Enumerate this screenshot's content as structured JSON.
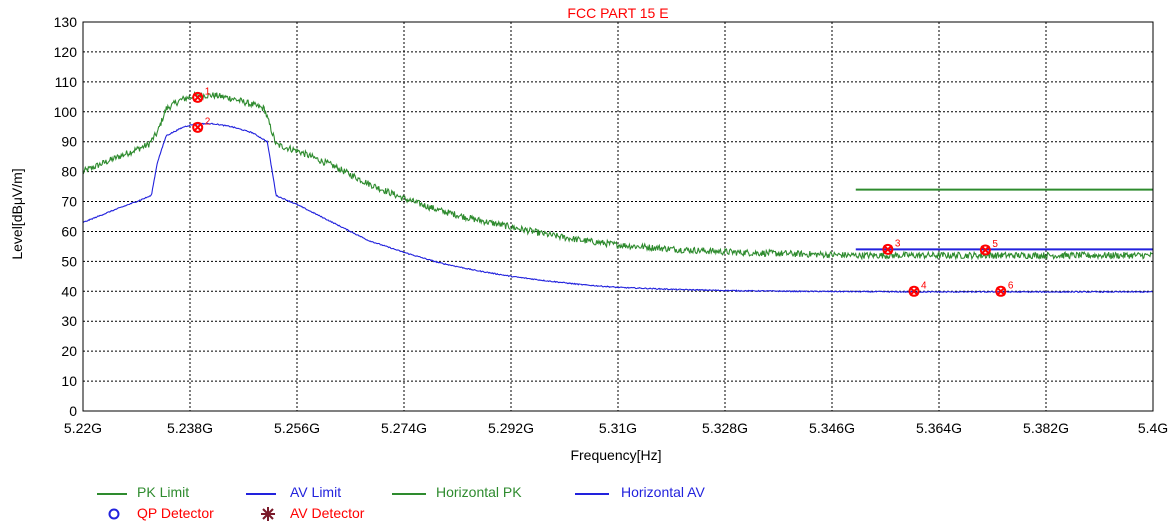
{
  "chart_data": {
    "type": "line",
    "title": "FCC PART 15 E",
    "xlabel": "Frequency[Hz]",
    "ylabel": "Level[dBμV/m]",
    "x_range_ghz": [
      5.22,
      5.4
    ],
    "ylim": [
      0,
      130
    ],
    "x_ticks": [
      {
        "v": 5.22,
        "label": "5.22G"
      },
      {
        "v": 5.238,
        "label": "5.238G"
      },
      {
        "v": 5.256,
        "label": "5.256G"
      },
      {
        "v": 5.274,
        "label": "5.274G"
      },
      {
        "v": 5.292,
        "label": "5.292G"
      },
      {
        "v": 5.31,
        "label": "5.31G"
      },
      {
        "v": 5.328,
        "label": "5.328G"
      },
      {
        "v": 5.346,
        "label": "5.346G"
      },
      {
        "v": 5.364,
        "label": "5.364G"
      },
      {
        "v": 5.382,
        "label": "5.382G"
      },
      {
        "v": 5.4,
        "label": "5.4G"
      }
    ],
    "y_ticks": [
      0,
      10,
      20,
      30,
      40,
      50,
      60,
      70,
      80,
      90,
      100,
      110,
      120,
      130
    ],
    "grid": true,
    "series": [
      {
        "name": "PK Limit",
        "color": "#2e8b2e",
        "x": [
          5.35,
          5.4
        ],
        "y": [
          74,
          74
        ]
      },
      {
        "name": "AV Limit",
        "color": "#2222dd",
        "x": [
          5.35,
          5.4
        ],
        "y": [
          54,
          54
        ]
      },
      {
        "name": "Horizontal PK",
        "color": "#2e8b2e",
        "noisy": true,
        "x": [
          5.22,
          5.226,
          5.231,
          5.2325,
          5.234,
          5.2365,
          5.239,
          5.242,
          5.245,
          5.2475,
          5.2505,
          5.2525,
          5.256,
          5.262,
          5.268,
          5.274,
          5.28,
          5.286,
          5.292,
          5.298,
          5.304,
          5.31,
          5.32,
          5.33,
          5.34,
          5.35,
          5.36,
          5.37,
          5.38,
          5.39,
          5.4
        ],
        "y": [
          80,
          85,
          89,
          93,
          101,
          104,
          105.5,
          105.5,
          104.5,
          103,
          101,
          89,
          87,
          82,
          76,
          71,
          67,
          64,
          61.5,
          59,
          57,
          55.5,
          54,
          53,
          52.5,
          52,
          52,
          52,
          52,
          52,
          52
        ]
      },
      {
        "name": "Horizontal AV",
        "color": "#2222dd",
        "noisy": false,
        "x": [
          5.22,
          5.225,
          5.229,
          5.2315,
          5.2325,
          5.234,
          5.237,
          5.239,
          5.242,
          5.245,
          5.2485,
          5.251,
          5.2525,
          5.256,
          5.262,
          5.268,
          5.274,
          5.28,
          5.286,
          5.292,
          5.298,
          5.304,
          5.31,
          5.32,
          5.33,
          5.34,
          5.35,
          5.36,
          5.37,
          5.38,
          5.39,
          5.4
        ],
        "y": [
          63,
          67,
          70,
          72,
          83,
          92,
          95,
          96,
          96,
          95,
          93,
          90,
          72,
          69,
          63,
          57,
          53,
          49.5,
          47,
          45,
          43.5,
          42.2,
          41.3,
          40.6,
          40.2,
          40,
          39.9,
          39.8,
          39.8,
          39.8,
          39.8,
          39.8
        ]
      }
    ],
    "markers": [
      {
        "label": "1",
        "x": 5.2393,
        "y": 104.8
      },
      {
        "label": "2",
        "x": 5.2393,
        "y": 94.8
      },
      {
        "label": "3",
        "x": 5.3554,
        "y": 54
      },
      {
        "label": "4",
        "x": 5.3598,
        "y": 40
      },
      {
        "label": "5",
        "x": 5.3718,
        "y": 53.8
      },
      {
        "label": "6",
        "x": 5.3744,
        "y": 40
      }
    ],
    "legend": {
      "placement": "bottom-left",
      "rows": [
        [
          {
            "label": "PK Limit",
            "color": "#2e8b2e",
            "kind": "line"
          },
          {
            "label": "AV Limit",
            "color": "#2222dd",
            "kind": "line"
          },
          {
            "label": "Horizontal PK",
            "color": "#2e8b2e",
            "kind": "line"
          },
          {
            "label": "Horizontal AV",
            "color": "#2222dd",
            "kind": "line"
          }
        ],
        [
          {
            "label": "QP Detector",
            "color": "#2222dd",
            "kind": "circle"
          },
          {
            "label": "AV Detector",
            "color": "#7a1a2a",
            "kind": "star"
          }
        ]
      ]
    },
    "colors": {
      "title": "#ff0000",
      "marker": "#ff0000",
      "marker_label": "#ff0000"
    }
  }
}
